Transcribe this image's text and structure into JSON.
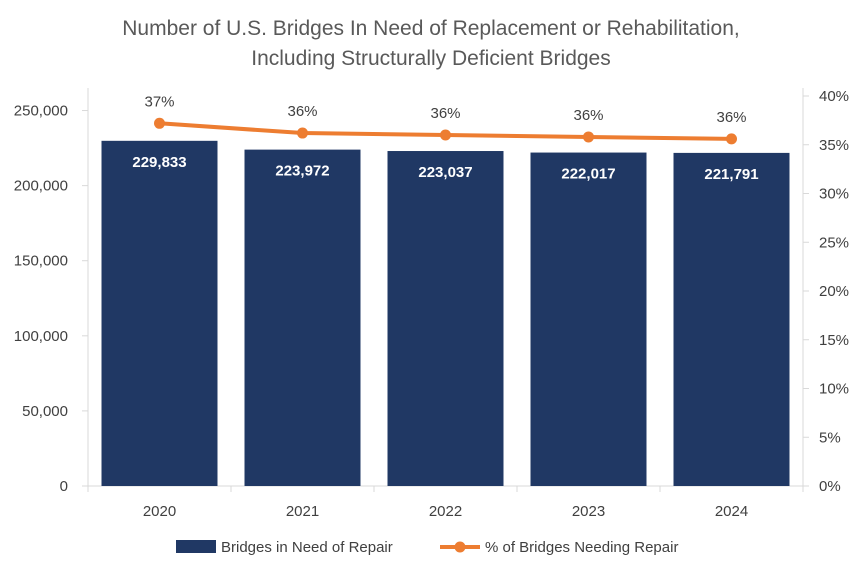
{
  "chart_data": {
    "type": "bar+line",
    "title_lines": [
      "Number of U.S. Bridges In Need of Replacement or Rehabilitation,",
      "Including Structurally Deficient Bridges"
    ],
    "categories": [
      "2020",
      "2021",
      "2022",
      "2023",
      "2024"
    ],
    "series": [
      {
        "name": "Bridges in Need of Repair",
        "type": "bar",
        "axis": "left",
        "values": [
          229833,
          223972,
          223037,
          222017,
          221791
        ],
        "value_labels": [
          "229,833",
          "223,972",
          "223,037",
          "222,017",
          "221,791"
        ],
        "color": "#203864"
      },
      {
        "name": "% of Bridges Needing Repair",
        "type": "line",
        "axis": "right",
        "values": [
          37.2,
          36.2,
          36.0,
          35.8,
          35.6
        ],
        "value_labels": [
          "37%",
          "36%",
          "36%",
          "36%",
          "36%"
        ],
        "color": "#ED7D31"
      }
    ],
    "y_left": {
      "min": 0,
      "max": 250000,
      "plot_max": 265000,
      "ticks": [
        0,
        50000,
        100000,
        150000,
        200000,
        250000
      ],
      "tick_labels": [
        "0",
        "50,000",
        "100,000",
        "150,000",
        "200,000",
        "250,000"
      ]
    },
    "y_right": {
      "min": 0,
      "max": 40,
      "ticks": [
        0,
        5,
        10,
        15,
        20,
        25,
        30,
        35,
        40
      ],
      "tick_labels": [
        "0%",
        "5%",
        "10%",
        "15%",
        "20%",
        "25%",
        "30%",
        "35%",
        "40%"
      ]
    },
    "gridlines": false,
    "legend_position": "bottom"
  }
}
